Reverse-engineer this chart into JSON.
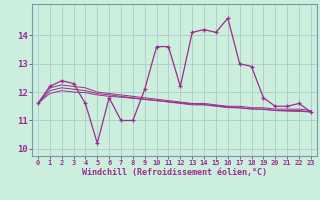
{
  "x": [
    0,
    1,
    2,
    3,
    4,
    5,
    6,
    7,
    8,
    9,
    10,
    11,
    12,
    13,
    14,
    15,
    16,
    17,
    18,
    19,
    20,
    21,
    22,
    23
  ],
  "line1": [
    11.6,
    12.2,
    12.4,
    12.3,
    11.6,
    10.2,
    11.8,
    11.0,
    11.0,
    12.1,
    13.6,
    13.6,
    12.2,
    14.1,
    14.2,
    14.1,
    14.6,
    13.0,
    12.9,
    11.8,
    11.5,
    11.5,
    11.6,
    11.3
  ],
  "line2": [
    11.6,
    12.15,
    12.25,
    12.2,
    12.15,
    12.0,
    11.95,
    11.9,
    11.85,
    11.8,
    11.75,
    11.7,
    11.65,
    11.6,
    11.6,
    11.55,
    11.5,
    11.5,
    11.45,
    11.45,
    11.4,
    11.4,
    11.4,
    11.35
  ],
  "line3": [
    11.6,
    12.05,
    12.15,
    12.1,
    12.05,
    11.95,
    11.9,
    11.85,
    11.8,
    11.75,
    11.7,
    11.65,
    11.6,
    11.55,
    11.55,
    11.5,
    11.45,
    11.45,
    11.4,
    11.4,
    11.35,
    11.35,
    11.35,
    11.3
  ],
  "line4": [
    11.6,
    11.95,
    12.05,
    12.0,
    11.98,
    11.9,
    11.85,
    11.82,
    11.78,
    11.74,
    11.7,
    11.66,
    11.62,
    11.58,
    11.56,
    11.52,
    11.48,
    11.44,
    11.41,
    11.39,
    11.35,
    11.33,
    11.32,
    11.3
  ],
  "color": "#9b2d8e",
  "bg_color": "#cceedd",
  "grid_color": "#aacccc",
  "text_color": "#9b2d8e",
  "xlabel": "Windchill (Refroidissement éolien,°C)",
  "ylim": [
    9.75,
    15.1
  ],
  "xlim": [
    -0.5,
    23.5
  ],
  "yticks": [
    10,
    11,
    12,
    13,
    14
  ],
  "xticks": [
    0,
    1,
    2,
    3,
    4,
    5,
    6,
    7,
    8,
    9,
    10,
    11,
    12,
    13,
    14,
    15,
    16,
    17,
    18,
    19,
    20,
    21,
    22,
    23
  ]
}
